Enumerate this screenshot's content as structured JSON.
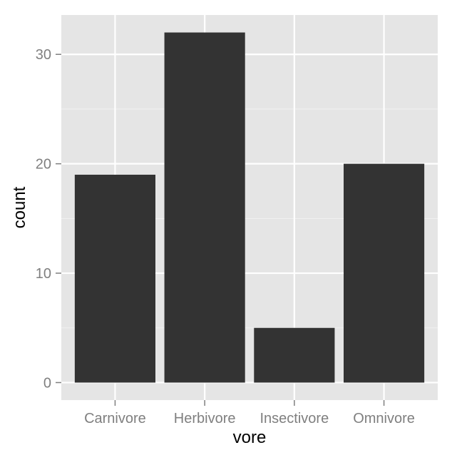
{
  "chart_data": {
    "type": "bar",
    "categories": [
      "Carnivore",
      "Herbivore",
      "Insectivore",
      "Omnivore"
    ],
    "values": [
      19,
      32,
      5,
      20
    ],
    "title": "",
    "xlabel": "vore",
    "ylabel": "count",
    "ylim": [
      -1.6,
      33.6
    ],
    "y_ticks": [
      0,
      10,
      20,
      30
    ],
    "y_tick_labels": [
      "0",
      "10",
      "20",
      "30"
    ],
    "grid": true,
    "legend": "none",
    "colors": {
      "panel_background": "#e5e5e5",
      "grid_major": "#ffffff",
      "grid_minor": "#f2f2f2",
      "bar_fill": "#333333",
      "tick_text": "#7f7f7f",
      "axis_title": "#000000"
    }
  }
}
